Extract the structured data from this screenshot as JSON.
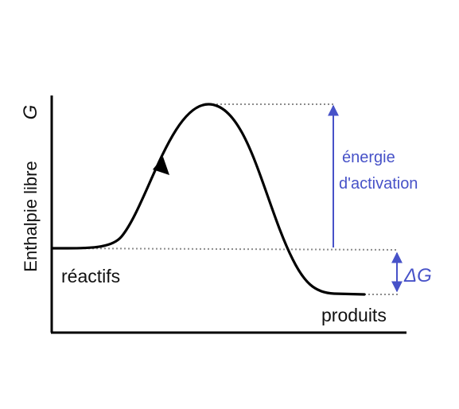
{
  "axes": {
    "ylabel": "Enthalpie libre",
    "ylabel_symbol": "G"
  },
  "labels": {
    "reactants": "réactifs",
    "products": "produits",
    "activation_line1": "énergie",
    "activation_line2": "d'activation",
    "delta_g": "ΔG"
  },
  "colors": {
    "curve": "#000000",
    "axis": "#000000",
    "guide": "#8c8c8c",
    "annotation": "#4752c8"
  },
  "icons": {
    "direction": "arrowhead-icon",
    "activation_arrow": "double-arrow-icon",
    "delta_arrow": "double-arrow-icon"
  }
}
